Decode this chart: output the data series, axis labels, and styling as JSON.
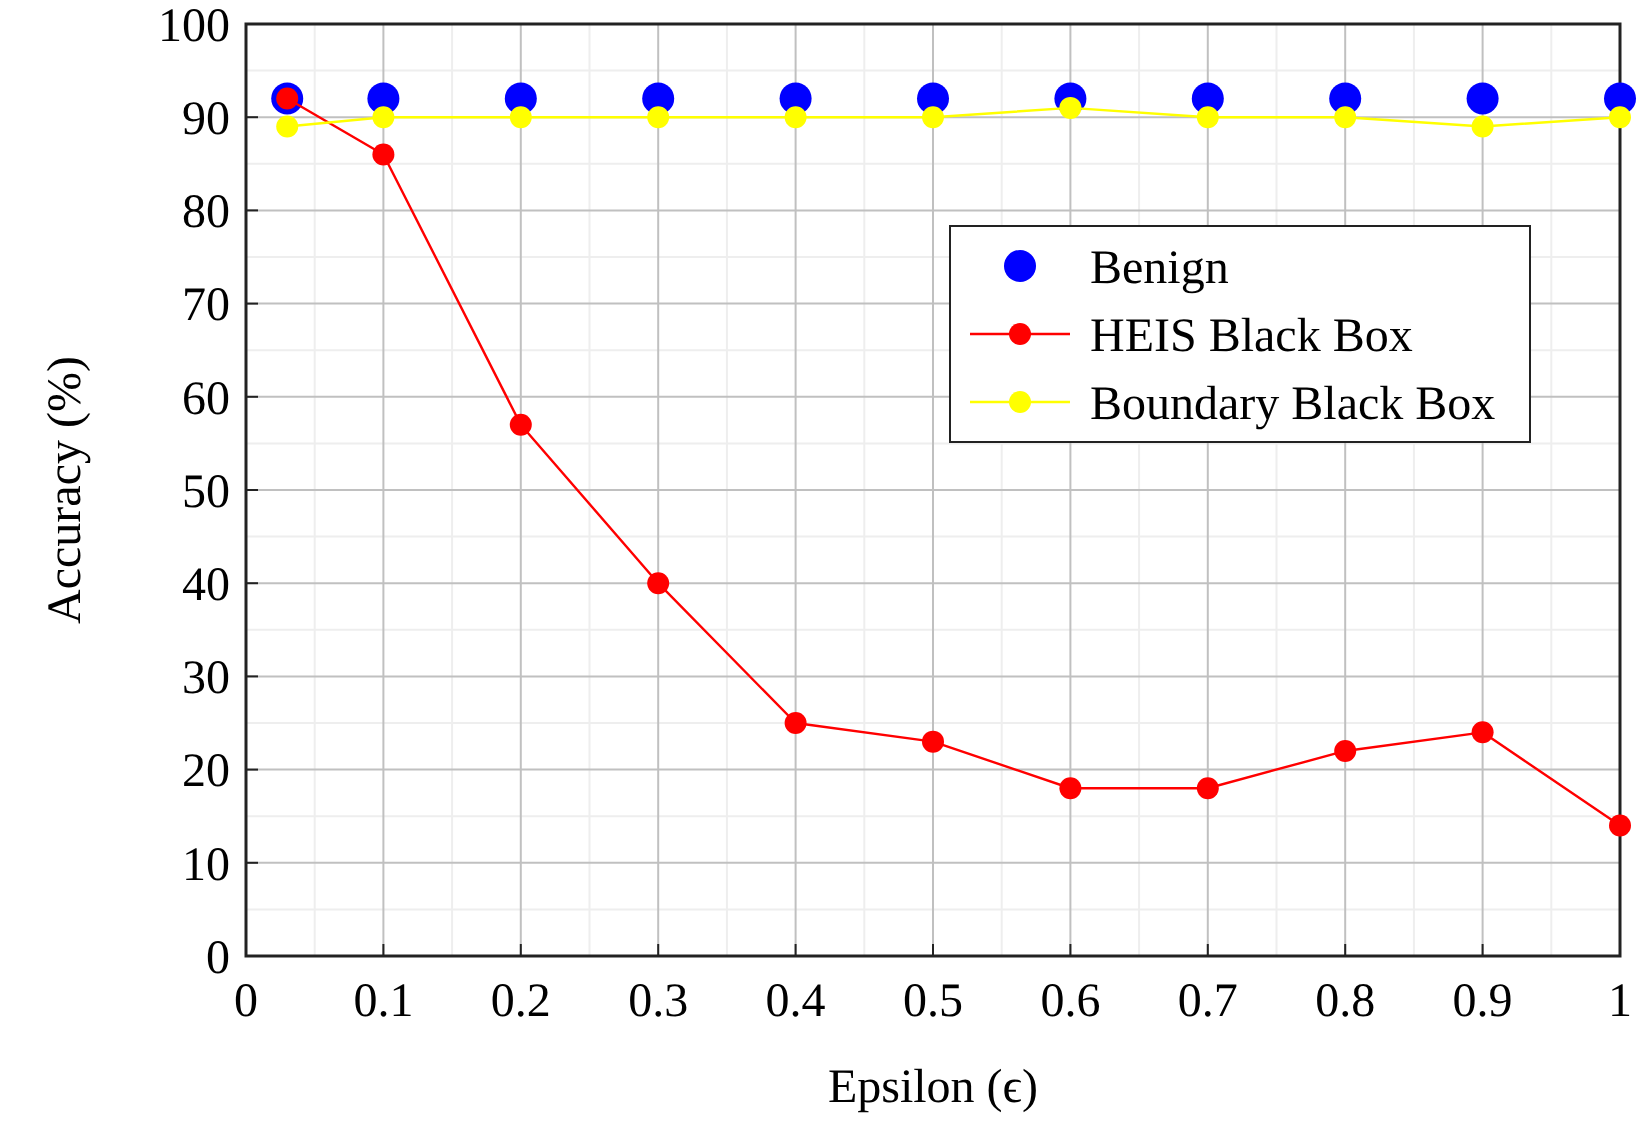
{
  "chart_data": {
    "type": "line",
    "xlabel": "Epsilon (ϵ)",
    "ylabel": "Accuracy (%)",
    "x": [
      0.03,
      0.1,
      0.2,
      0.3,
      0.4,
      0.5,
      0.6,
      0.7,
      0.8,
      0.9,
      1
    ],
    "series": [
      {
        "name": "Benign",
        "type": "scatter",
        "color": "#0000ff",
        "values": [
          92,
          92,
          92,
          92,
          92,
          92,
          92,
          92,
          92,
          92,
          92
        ]
      },
      {
        "name": "HEIS Black Box",
        "color": "#ff0000",
        "values": [
          92,
          86,
          57,
          40,
          25,
          23,
          18,
          18,
          22,
          24,
          14
        ]
      },
      {
        "name": "Boundary Black Box",
        "color": "#ffff00",
        "values": [
          89,
          90,
          90,
          90,
          90,
          90,
          91,
          90,
          90,
          89,
          90
        ]
      }
    ],
    "xlim": [
      0,
      1
    ],
    "xticks": [
      0,
      0.1,
      0.2,
      0.3,
      0.4,
      0.5,
      0.6,
      0.7,
      0.8,
      0.9,
      1
    ],
    "ylim": [
      0,
      100
    ],
    "yticks": [
      0,
      10,
      20,
      30,
      40,
      50,
      60,
      70,
      80,
      90,
      100
    ],
    "grid": true,
    "legend": "right",
    "marker": "circle",
    "line_style": "solid"
  }
}
